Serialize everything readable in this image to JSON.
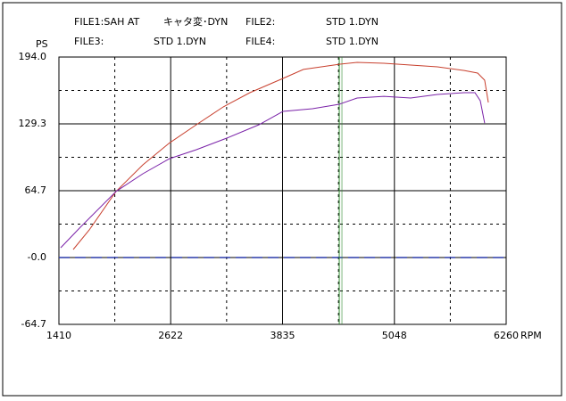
{
  "chart_data": {
    "type": "line",
    "ylabel": "PS",
    "xlabel": "RPM",
    "xlim": [
      1410,
      6260
    ],
    "xticks": [
      1410,
      2622,
      3835,
      5048,
      6260
    ],
    "ylim": [
      -64.7,
      194.0
    ],
    "yticks": [
      {
        "value": -64.7,
        "label": "-64.7"
      },
      {
        "value": 0,
        "label": "-0.0"
      },
      64.7,
      129.3,
      {
        "value": 194.0,
        "label": "194.0"
      }
    ],
    "grid": true,
    "zero_line_color": "#2a3aa8",
    "cursor_x": 4450,
    "series": [
      {
        "label": "FILE1:SAH AT",
        "name": "キャタ変･DYN",
        "color": "#c8402e",
        "x": [
          1565,
          1739,
          2030,
          2320,
          2610,
          2900,
          3191,
          3481,
          3840,
          4062,
          4450,
          4643,
          4934,
          5224,
          5514,
          5805,
          5950,
          6027,
          6066
        ],
        "values": [
          7.7,
          26.7,
          64,
          89.7,
          111,
          128.5,
          145.7,
          159.5,
          173.3,
          182,
          187,
          188.8,
          188,
          186.2,
          184.5,
          181,
          178.5,
          171.6,
          150
        ]
      },
      {
        "label": "FILE2:",
        "name": "STD 1.DYN",
        "color": "#2f8a2f"
      },
      {
        "label": "FILE3:",
        "name": "STD 1.DYN",
        "color": "#62cdee"
      },
      {
        "label": "FILE4:",
        "name": "STD 1.DYN",
        "color": "#7a22a8",
        "x": [
          1429,
          1642,
          2030,
          2320,
          2610,
          2900,
          3230,
          3578,
          3840,
          4159,
          4450,
          4643,
          4934,
          5224,
          5514,
          5805,
          5921,
          5979,
          6027
        ],
        "values": [
          9.5,
          29.3,
          64,
          81,
          95.7,
          104.3,
          115.5,
          128.5,
          141.4,
          144,
          148.3,
          154.3,
          156,
          154.3,
          157.8,
          159.5,
          159.5,
          151.7,
          130
        ]
      }
    ]
  }
}
